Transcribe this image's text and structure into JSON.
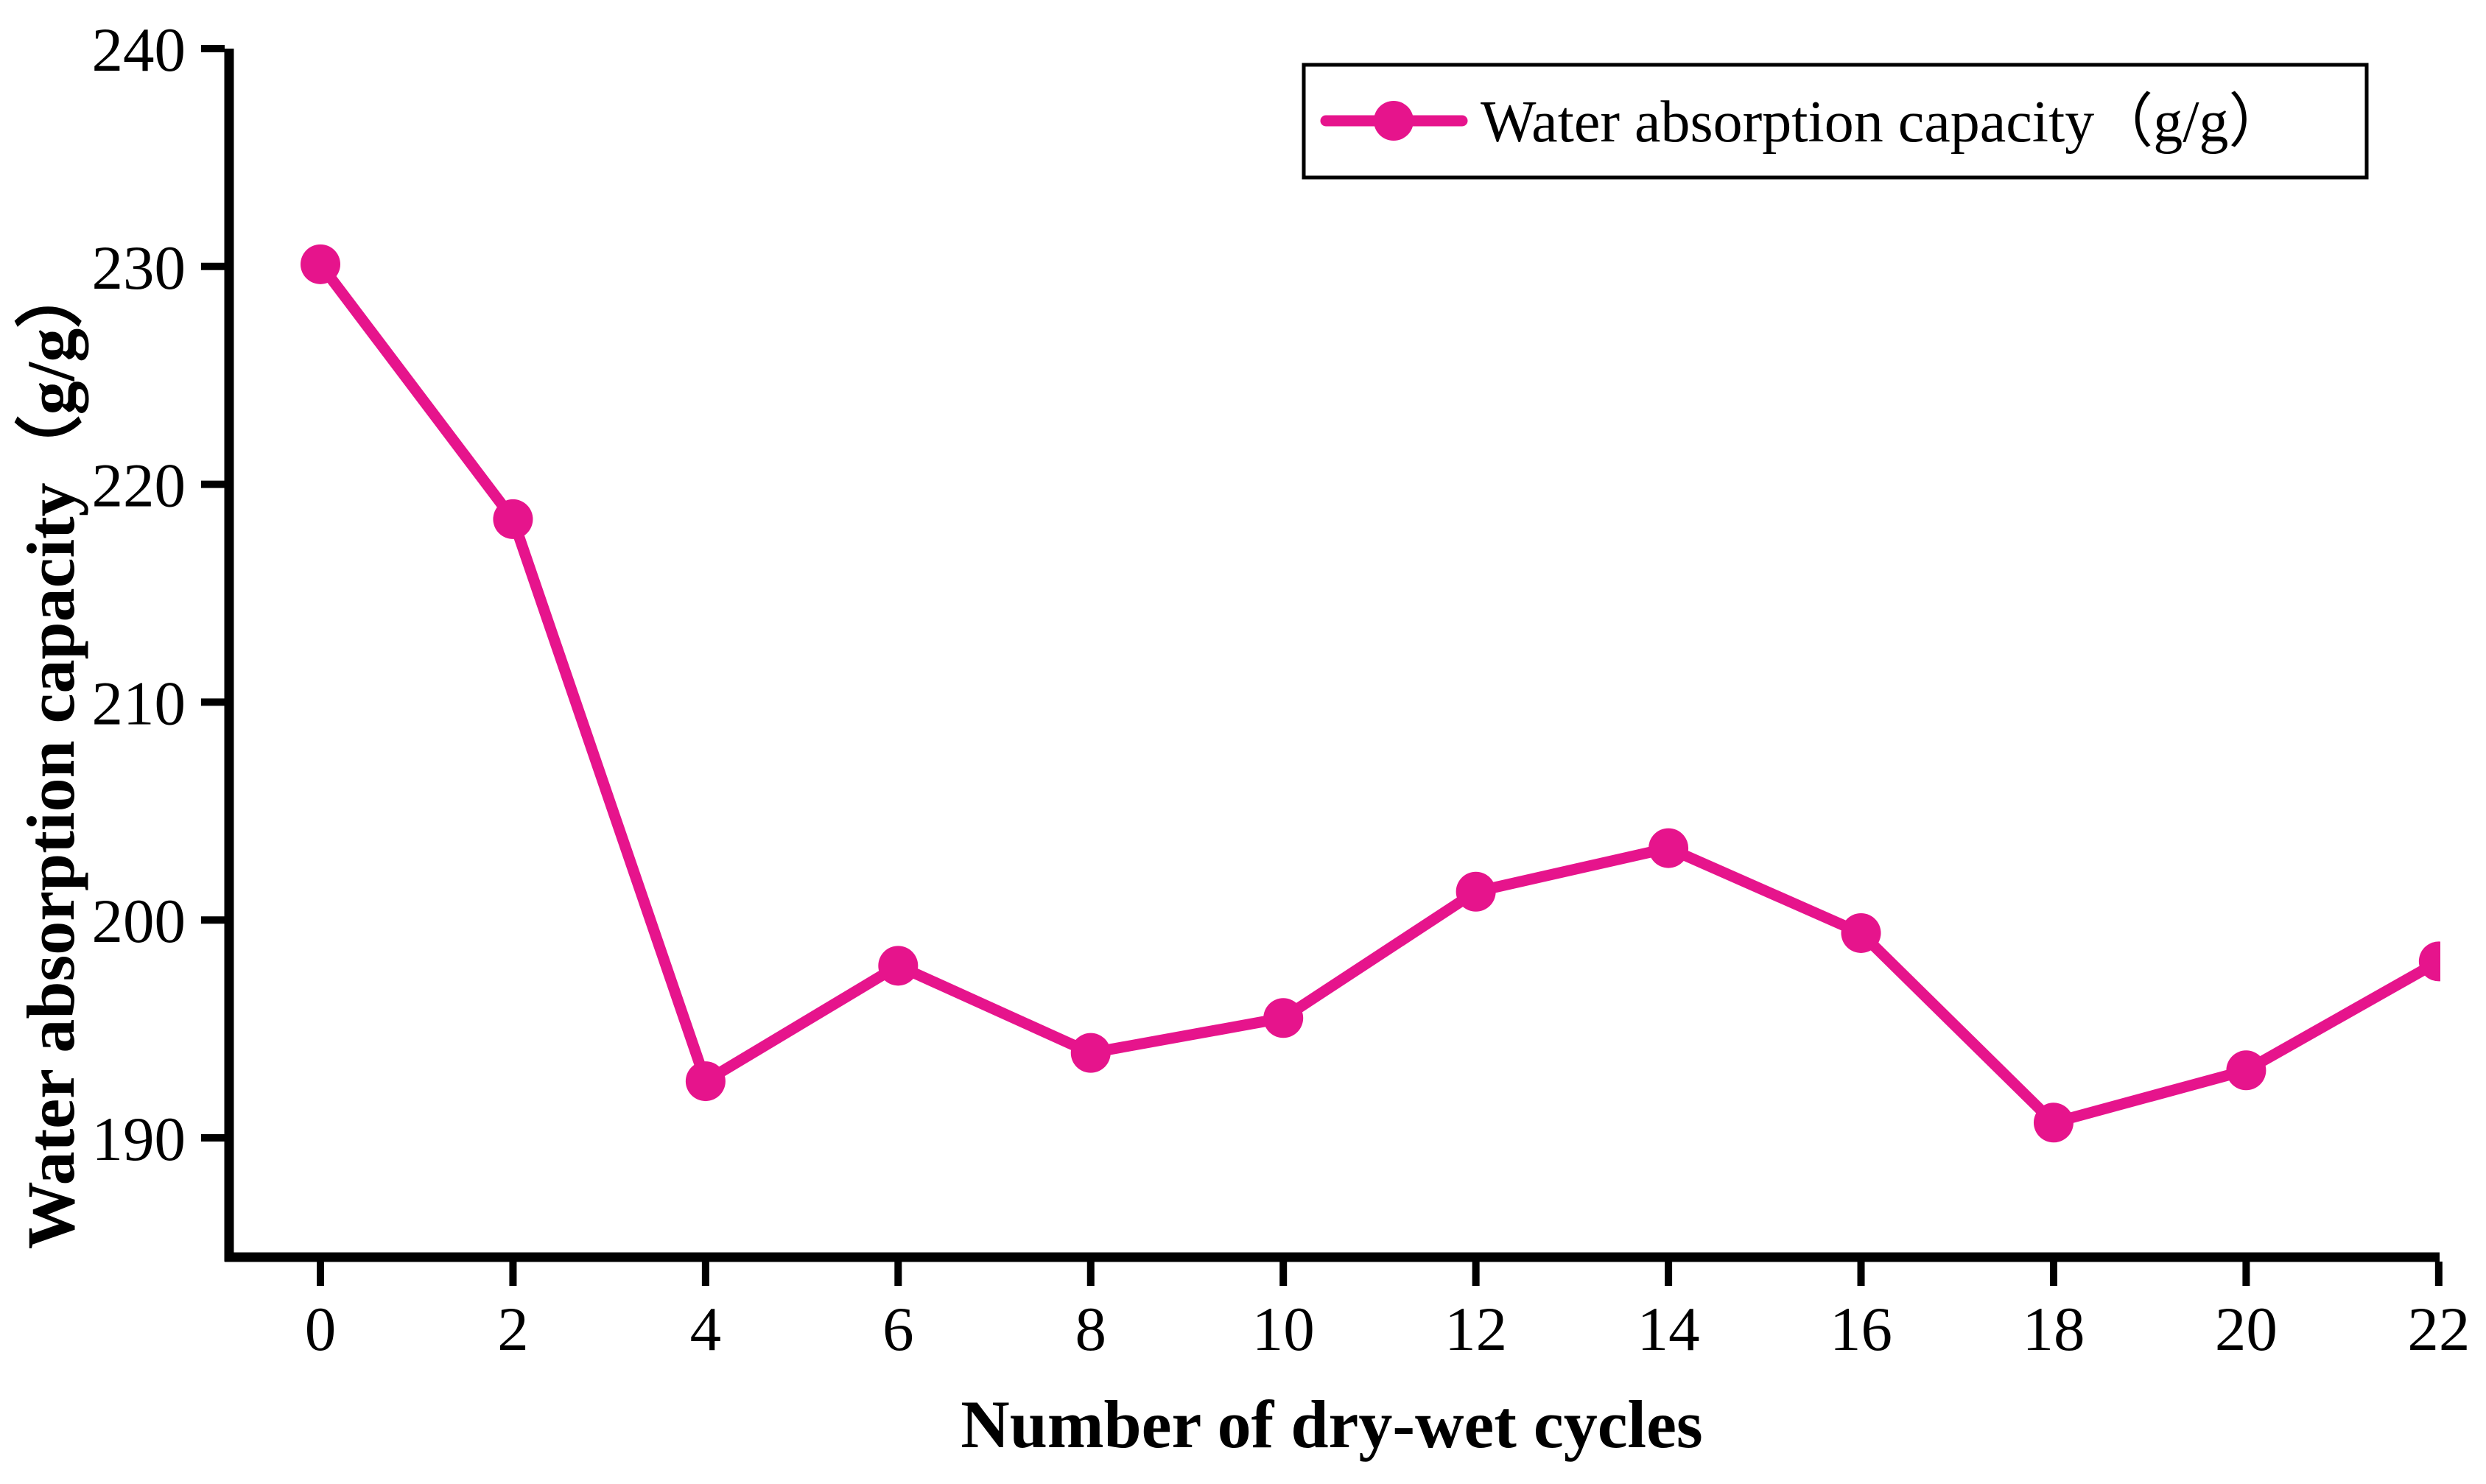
{
  "chart_data": {
    "type": "line",
    "title": "",
    "xlabel": "Number of dry-wet cycles",
    "ylabel": "Water absorption capacity（g/g）",
    "legend_label": "Water absorption capacity（g/g）",
    "legend_position": "upper right",
    "x": [
      0,
      2,
      4,
      6,
      8,
      10,
      12,
      14,
      16,
      18,
      20,
      22
    ],
    "series": [
      {
        "name": "Water absorption capacity (g/g)",
        "values": [
          230.1,
          218.4,
          192.6,
          197.9,
          193.9,
          195.5,
          201.3,
          203.3,
          199.4,
          190.7,
          193.1,
          198.1
        ]
      }
    ],
    "xticks": [
      0,
      2,
      4,
      6,
      8,
      10,
      12,
      14,
      16,
      18,
      20,
      22
    ],
    "yticks": [
      240,
      230,
      220,
      210,
      200,
      190
    ],
    "xlim": [
      -1,
      22
    ],
    "ylim": [
      184.6,
      240
    ],
    "grid": false,
    "marker": "circle",
    "line_color": "#E6148C",
    "axis_color": "#000000"
  }
}
